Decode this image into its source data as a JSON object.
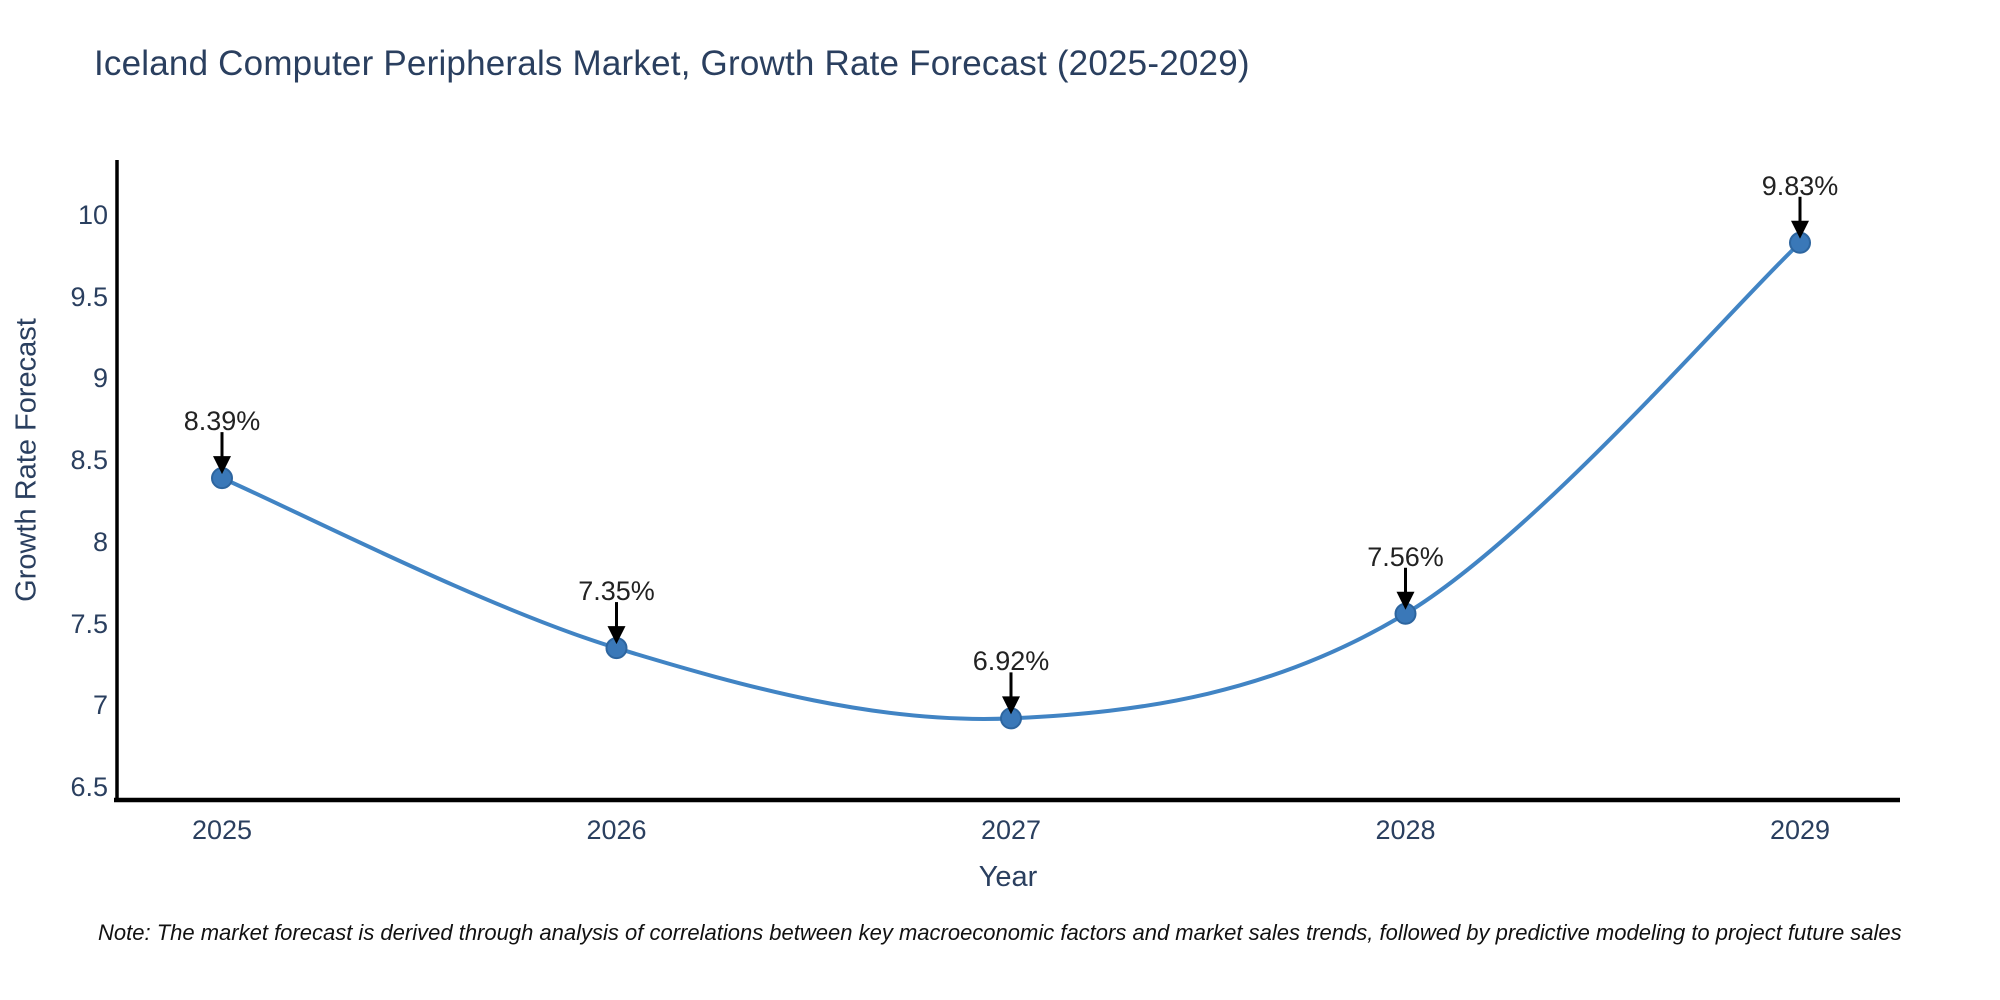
{
  "chart_data": {
    "type": "line",
    "line_shape": "spline",
    "title": "Iceland Computer Peripherals Market, Growth Rate Forecast (2025-2029)",
    "xlabel": "Year",
    "ylabel": "Growth Rate Forecast",
    "categories": [
      "2025",
      "2026",
      "2027",
      "2028",
      "2029"
    ],
    "values": [
      8.39,
      7.35,
      6.92,
      7.56,
      9.83
    ],
    "point_labels": [
      "8.39%",
      "7.35%",
      "6.92%",
      "7.56%",
      "9.83%"
    ],
    "ytick_labels": [
      "6.5",
      "7",
      "7.5",
      "8",
      "8.5",
      "9",
      "9.5",
      "10"
    ],
    "ytick_values": [
      6.5,
      7,
      7.5,
      8,
      8.5,
      9,
      9.5,
      10
    ],
    "ylim": [
      6.42,
      10.4
    ],
    "grid": false,
    "legend": false,
    "colors": {
      "line": "#4184c4",
      "marker_fill": "#3a78b8",
      "marker_stroke": "#2d659f",
      "axis": "#000000",
      "tick_text": "#2a3f5f",
      "annotation_text": "#222222",
      "arrow": "#000000"
    }
  },
  "note": {
    "text": "Note: The market forecast is derived through analysis of correlations between key macroeconomic factors and market sales trends, followed by predictive modeling to project future sales"
  }
}
